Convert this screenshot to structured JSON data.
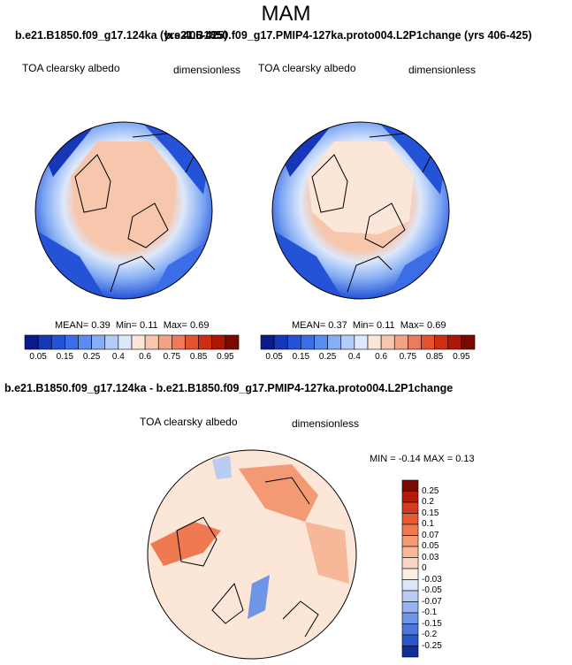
{
  "figure": {
    "title": "MAM",
    "case1_title": "b.e21.B1850.f09_g17.124ka (yrs 406-425)",
    "case2_title": "b.e21.B1850.f09_g17.PMIP4-127ka.proto004.L2P1change (yrs 406-425)",
    "diff_title": "b.e21.B1850.f09_g17.124ka - b.e21.B1850.f09_g17.PMIP4-127ka.proto004.L2P1change"
  },
  "chart_data": [
    {
      "type": "heatmap",
      "projection": "north-polar-stereographic",
      "variable": "TOA clearsky albedo",
      "units": "dimensionless",
      "stats": {
        "mean_label": "MEAN=",
        "mean": "0.39",
        "min_label": "Min=",
        "min": "0.11",
        "max_label": "Max=",
        "max": "0.69"
      },
      "colorbar": {
        "ticks": [
          "0.05",
          "0.15",
          "0.25",
          "0.4",
          "0.6",
          "0.75",
          "0.85",
          "0.95"
        ],
        "colors": [
          "#0a1a8c",
          "#1537b8",
          "#2553d8",
          "#3b6ee6",
          "#5b8cf0",
          "#86aef5",
          "#b3ccf8",
          "#dde8fb",
          "#fbe6d8",
          "#f6c6ad",
          "#f1a386",
          "#ec7a5b",
          "#e3532f",
          "#d02d12",
          "#ad1806",
          "#7a0a00"
        ]
      }
    },
    {
      "type": "heatmap",
      "projection": "north-polar-stereographic",
      "variable": "TOA clearsky albedo",
      "units": "dimensionless",
      "stats": {
        "mean_label": "MEAN=",
        "mean": "0.37",
        "min_label": "Min=",
        "min": "0.11",
        "max_label": "Max=",
        "max": "0.69"
      },
      "colorbar": {
        "ticks": [
          "0.05",
          "0.15",
          "0.25",
          "0.4",
          "0.6",
          "0.75",
          "0.85",
          "0.95"
        ],
        "colors": [
          "#0a1a8c",
          "#1537b8",
          "#2553d8",
          "#3b6ee6",
          "#5b8cf0",
          "#86aef5",
          "#b3ccf8",
          "#dde8fb",
          "#fbe6d8",
          "#f6c6ad",
          "#f1a386",
          "#ec7a5b",
          "#e3532f",
          "#d02d12",
          "#ad1806",
          "#7a0a00"
        ]
      }
    },
    {
      "type": "heatmap",
      "projection": "north-polar-stereographic",
      "variable": "TOA clearsky albedo",
      "units": "dimensionless",
      "stats": {
        "min_label": "MIN =",
        "min": "-0.14",
        "max_label": "MAX =",
        "max": "0.13"
      },
      "colorbar": {
        "orientation": "vertical",
        "ticks": [
          "0.25",
          "0.2",
          "0.15",
          "0.1",
          "0.07",
          "0.05",
          "0.03",
          "0",
          "-0.03",
          "-0.05",
          "-0.07",
          "-0.1",
          "-0.15",
          "-0.2",
          "-0.25"
        ],
        "colors": [
          "#7a0a00",
          "#b21c0a",
          "#d63a1c",
          "#e85a34",
          "#ef7a52",
          "#f39a74",
          "#f6b898",
          "#fad6c0",
          "#fbeee4",
          "#dce6f8",
          "#b9cdf3",
          "#95b3ee",
          "#6f96e6",
          "#4b77da",
          "#2b57c6",
          "#0e2f99"
        ]
      }
    }
  ]
}
